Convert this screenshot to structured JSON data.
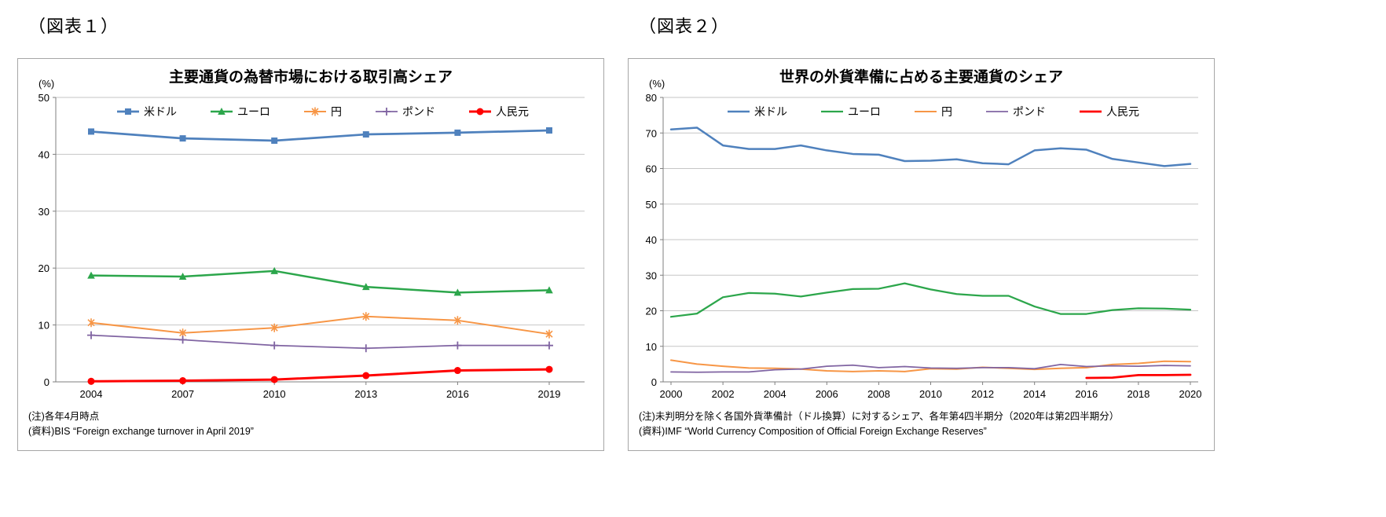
{
  "chart_data": [
    {
      "type": "line",
      "figure_label": "（図表１）",
      "title": "主要通貨の為替市場における取引高シェア",
      "unit_label": "(%)",
      "x": [
        2004,
        2007,
        2010,
        2013,
        2016,
        2019
      ],
      "ylim": [
        0,
        50
      ],
      "ytick_step": 10,
      "grid": true,
      "legend_position": "top-center-inside",
      "series": [
        {
          "id": "usd",
          "name": "米ドル",
          "color": "#4F81BD",
          "marker": "square",
          "line_width": 2.75,
          "values": [
            44.0,
            42.8,
            42.4,
            43.5,
            43.8,
            44.2
          ]
        },
        {
          "id": "euro",
          "name": "ユーロ",
          "color": "#2CA64B",
          "marker": "triangle",
          "line_width": 2.5,
          "values": [
            18.7,
            18.5,
            19.5,
            16.7,
            15.7,
            16.1
          ]
        },
        {
          "id": "yen",
          "name": "円",
          "color": "#F79646",
          "marker": "x",
          "line_width": 2,
          "values": [
            10.4,
            8.6,
            9.5,
            11.5,
            10.8,
            8.4
          ]
        },
        {
          "id": "gbp",
          "name": "ポンド",
          "color": "#8064A2",
          "marker": "plus",
          "line_width": 1.75,
          "values": [
            8.2,
            7.4,
            6.4,
            5.9,
            6.4,
            6.4
          ]
        },
        {
          "id": "cny",
          "name": "人民元",
          "color": "#FF0000",
          "marker": "circle",
          "line_width": 3,
          "values": [
            0.1,
            0.2,
            0.4,
            1.1,
            2.0,
            2.2
          ]
        }
      ],
      "notes": [
        "(注)各年4月時点",
        "(資料)BIS “Foreign exchange turnover in April 2019”"
      ]
    },
    {
      "type": "line",
      "figure_label": "（図表２）",
      "title": "世界の外貨準備に占める主要通貨のシェア",
      "unit_label": "(%)",
      "x": [
        2000,
        2001,
        2002,
        2003,
        2004,
        2005,
        2006,
        2007,
        2008,
        2009,
        2010,
        2011,
        2012,
        2013,
        2014,
        2015,
        2016,
        2017,
        2018,
        2019,
        2020
      ],
      "x_label_interval": 2,
      "ylim": [
        0,
        80
      ],
      "ytick_step": 10,
      "grid": true,
      "legend_position": "top-center-inside",
      "series": [
        {
          "id": "usd",
          "name": "米ドル",
          "color": "#4F81BD",
          "marker": "none",
          "line_width": 2.5,
          "values": [
            71.0,
            71.5,
            66.5,
            65.5,
            65.5,
            66.5,
            65.1,
            64.1,
            63.9,
            62.1,
            62.2,
            62.6,
            61.5,
            61.2,
            65.1,
            65.7,
            65.3,
            62.7,
            61.7,
            60.7,
            61.3
          ]
        },
        {
          "id": "euro",
          "name": "ユーロ",
          "color": "#2CA64B",
          "marker": "none",
          "line_width": 2.25,
          "values": [
            18.3,
            19.2,
            23.8,
            25.0,
            24.8,
            24.0,
            25.1,
            26.1,
            26.2,
            27.7,
            26.0,
            24.7,
            24.2,
            24.2,
            21.2,
            19.1,
            19.1,
            20.2,
            20.7,
            20.6,
            20.3
          ]
        },
        {
          "id": "yen",
          "name": "円",
          "color": "#F79646",
          "marker": "none",
          "line_width": 2,
          "values": [
            6.1,
            5.0,
            4.4,
            3.9,
            3.8,
            3.6,
            3.1,
            2.9,
            3.1,
            2.9,
            3.7,
            3.6,
            4.1,
            3.8,
            3.5,
            3.8,
            4.0,
            4.9,
            5.2,
            5.8,
            5.7
          ]
        },
        {
          "id": "gbp",
          "name": "ポンド",
          "color": "#8064A2",
          "marker": "none",
          "line_width": 1.75,
          "values": [
            2.8,
            2.7,
            2.8,
            2.8,
            3.4,
            3.6,
            4.4,
            4.7,
            4.0,
            4.3,
            3.9,
            3.8,
            4.0,
            4.0,
            3.7,
            4.9,
            4.3,
            4.5,
            4.4,
            4.6,
            4.5
          ]
        },
        {
          "id": "cny",
          "name": "人民元",
          "color": "#FF0000",
          "marker": "none",
          "line_width": 2.75,
          "values": [
            null,
            null,
            null,
            null,
            null,
            null,
            null,
            null,
            null,
            null,
            null,
            null,
            null,
            null,
            null,
            null,
            1.1,
            1.2,
            1.9,
            1.9,
            2.0
          ]
        }
      ],
      "notes": [
        "(注)未判明分を除く各国外貨準備計（ドル換算）に対するシェア、各年第4四半期分（2020年は第2四半期分）",
        "(資料)IMF “World Currency Composition of Official Foreign Exchange Reserves”"
      ]
    }
  ]
}
